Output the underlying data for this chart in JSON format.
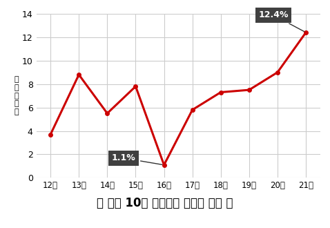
{
  "x_labels": [
    "12년",
    "13년",
    "14년",
    "15년",
    "16년",
    "17년",
    "18년",
    "19년",
    "20년",
    "21년"
  ],
  "x_values": [
    0,
    1,
    2,
    3,
    4,
    5,
    6,
    7,
    8,
    9
  ],
  "y_values": [
    3.7,
    8.8,
    5.5,
    7.8,
    1.1,
    5.8,
    7.3,
    7.5,
    9.0,
    12.4
  ],
  "line_color": "#cc0000",
  "line_width": 2.2,
  "marker_size": 4,
  "ylabel": "연\n간\n수\n익\n률",
  "ylim": [
    0,
    14
  ],
  "yticks": [
    0,
    2,
    4,
    6,
    8,
    10,
    12,
    14
  ],
  "ann_min_text": "1.1%",
  "ann_min_xi": 4,
  "ann_min_yi": 1.1,
  "ann_min_xt": 3.0,
  "ann_min_yt": 1.3,
  "ann_max_text": "12.4%",
  "ann_max_xi": 9,
  "ann_max_yi": 12.4,
  "ann_max_xt": 7.85,
  "ann_max_yt": 13.5,
  "caption": "＜ 최근 10년 청산펜드 수익률 추이 ＞",
  "caption_bg": "#dce6f1",
  "bg_color": "#ffffff",
  "grid_color": "#cccccc",
  "annotation_box_color": "#404040",
  "annotation_text_color": "#ffffff"
}
